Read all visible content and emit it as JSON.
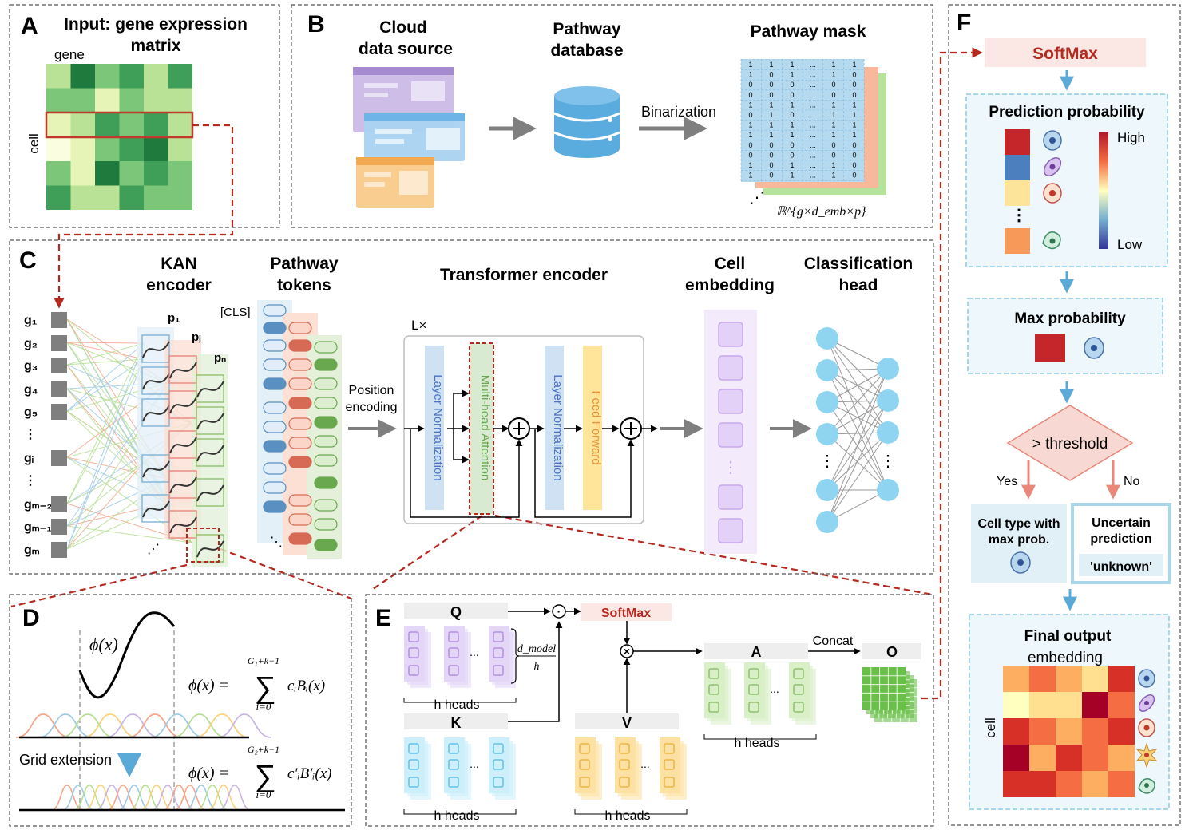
{
  "panels": {
    "A": {
      "letter": "A",
      "title_line1": "Input: gene expression",
      "title_line2": "matrix",
      "gene_label": "gene",
      "cell_label": "cell"
    },
    "B": {
      "letter": "B",
      "cloud_line1": "Cloud",
      "cloud_line2": "data source",
      "db_line1": "Pathway",
      "db_line2": "database",
      "binarization": "Binarization",
      "mask_title": "Pathway mask",
      "mask_dim": "ℝ^{g×d_emb×p}",
      "mask_rows": [
        [
          "1",
          "1",
          "1",
          "...",
          "1",
          "1"
        ],
        [
          "1",
          "0",
          "1",
          "...",
          "1",
          "0"
        ],
        [
          "0",
          "0",
          "0",
          "...",
          "0",
          "0"
        ],
        [
          "0",
          "0",
          "0",
          "...",
          "0",
          "0"
        ],
        [
          "1",
          "1",
          "1",
          "...",
          "1",
          "1"
        ],
        [
          "0",
          "1",
          "0",
          "...",
          "1",
          "1"
        ],
        [
          "1",
          "1",
          "1",
          "...",
          "1",
          "1"
        ],
        [
          "1",
          "1",
          "1",
          "...",
          "1",
          "1"
        ],
        [
          "0",
          "0",
          "0",
          "...",
          "0",
          "0"
        ],
        [
          "0",
          "0",
          "0",
          "...",
          "0",
          "0"
        ],
        [
          "1",
          "0",
          "1",
          "...",
          "1",
          "0"
        ],
        [
          "1",
          "0",
          "1",
          "...",
          "1",
          "0"
        ]
      ]
    },
    "C": {
      "letter": "C",
      "kan_line1": "KAN",
      "kan_line2": "encoder",
      "path_line1": "Pathway",
      "path_line2": "tokens",
      "transformer_title": "Transformer encoder",
      "cell_line1": "Cell",
      "cell_line2": "embedding",
      "class_line1": "Classification",
      "class_line2": "head",
      "cls_token": "[CLS]",
      "p1": "p₁",
      "pj": "pⱼ",
      "pn": "pₙ",
      "lx": "L×",
      "position_line1": "Position",
      "position_line2": "encoding",
      "layer_norm": "Layer Normalization",
      "mha": "Multi-head Attention",
      "feed_forward": "Feed Forward",
      "genes": [
        "g₁",
        "g₂",
        "g₃",
        "g₄",
        "g₅",
        "⋮",
        "gᵢ",
        "⋮",
        "gₘ₋₂",
        "gₘ₋₁",
        "gₘ"
      ]
    },
    "D": {
      "letter": "D",
      "phi": "ϕ(x)",
      "eq1_lhs": "ϕ(x) =",
      "eq1_sum_top": "G₁+k−1",
      "eq1_sum_bottom": "i=0",
      "eq1_term": "cᵢBᵢ(x)",
      "grid_extension": "Grid extension",
      "eq2_lhs": "ϕ(x) =",
      "eq2_sum_top": "G₂+k−1",
      "eq2_sum_bottom": "i=0",
      "eq2_term": "c′ᵢB′ᵢ(x)"
    },
    "E": {
      "letter": "E",
      "q": "Q",
      "k": "K",
      "v": "V",
      "a": "A",
      "o": "O",
      "softmax": "SoftMax",
      "concat": "Concat",
      "h_heads": "h heads",
      "dmodel_num": "d_model",
      "dmodel_den": "h",
      "dot": "·",
      "times": "×"
    },
    "F": {
      "letter": "F",
      "softmax": "SoftMax",
      "pred_prob": "Prediction probability",
      "high": "High",
      "low": "Low",
      "max_prob": "Max probability",
      "threshold": "> threshold",
      "yes": "Yes",
      "no": "No",
      "cell_type_line1": "Cell type with",
      "cell_type_line2": "max prob.",
      "uncertain_line1": "Uncertain",
      "uncertain_line2": "prediction",
      "unknown": "'unknown'",
      "final_output": "Final output",
      "embedding": "embedding",
      "cell_label": "cell"
    }
  },
  "colors": {
    "dashed_red": "#b5291f",
    "softmax_bg": "#fbe8e4",
    "softmax_text": "#b5291f",
    "threshold_fill": "#f7d8d2",
    "box_blue": "#e1f0f6",
    "layer_norm": "#cfe2f3",
    "mha": "#d9ead3",
    "feed_forward": "#ffe599",
    "cell_embed": "#f1e6fb"
  }
}
